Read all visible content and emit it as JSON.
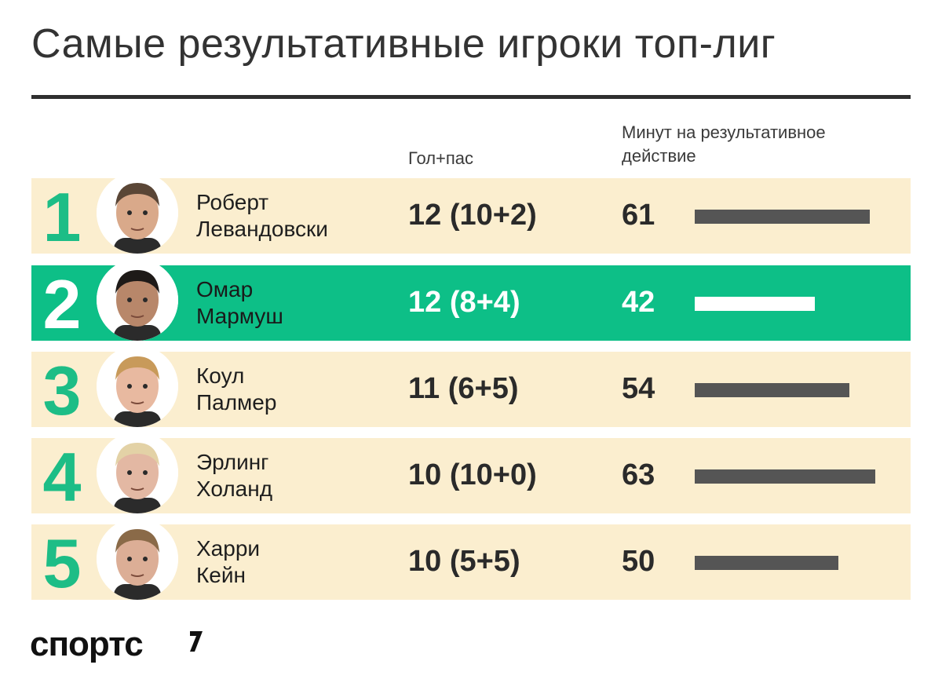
{
  "title": "Самые результативные игроки топ-лиг",
  "columns": {
    "goals_assists": "Гол+пас",
    "minutes": "Минут на результативное действие"
  },
  "logo": "спортс",
  "colors": {
    "accent": "#0dbf87",
    "row_bg": "#fbeecf",
    "bar": "#555555"
  },
  "chart_data": {
    "type": "table",
    "title": "Самые результативные игроки топ-лиг",
    "rows": [
      {
        "rank": "1",
        "name_line1": "Роберт",
        "name_line2": "Левандовски",
        "ga": "12 (10+2)",
        "minutes": 61,
        "minutes_label": "61",
        "highlight": false
      },
      {
        "rank": "2",
        "name_line1": "Омар",
        "name_line2": "Мармуш",
        "ga": "12 (8+4)",
        "minutes": 42,
        "minutes_label": "42",
        "highlight": true
      },
      {
        "rank": "3",
        "name_line1": "Коул",
        "name_line2": "Палмер",
        "ga": "11 (6+5)",
        "minutes": 54,
        "minutes_label": "54",
        "highlight": false
      },
      {
        "rank": "4",
        "name_line1": "Эрлинг",
        "name_line2": "Холанд",
        "ga": "10 (10+0)",
        "minutes": 63,
        "minutes_label": "63",
        "highlight": false
      },
      {
        "rank": "5",
        "name_line1": "Харри",
        "name_line2": "Кейн",
        "ga": "10 (5+5)",
        "minutes": 50,
        "minutes_label": "50",
        "highlight": false
      }
    ],
    "bar_max": 63
  }
}
